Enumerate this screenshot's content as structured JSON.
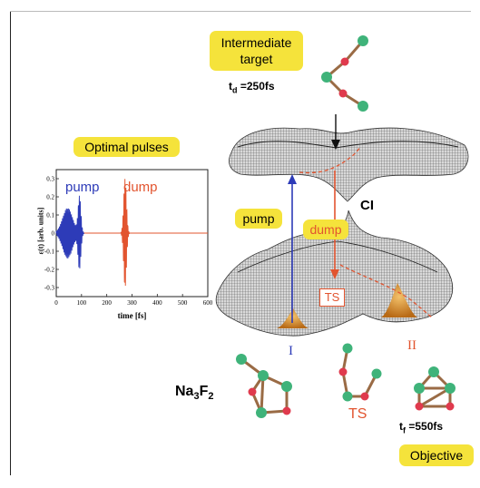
{
  "colors": {
    "highlight": "#f5e33b",
    "pump": "#2d3bb8",
    "dump": "#e2542f",
    "atom_green": "#3fb37a",
    "atom_red": "#e03a4d",
    "bond": "#9a6b45",
    "surface": "#8f8f8f",
    "wavepacket": "#d98a2b"
  },
  "labels": {
    "intermediate_target": "Intermediate target",
    "td": "t",
    "td_sub": "d",
    "td_value": " =250fs",
    "optimal_pulses": "Optimal pulses",
    "pump": "pump",
    "dump": "dump",
    "ci": "CI",
    "ts_box": "TS",
    "ts_bottom": "TS",
    "state_I": "I",
    "state_II": "II",
    "molecule": "Na",
    "molecule_sub1": "3",
    "molecule_F": "F",
    "molecule_sub2": "2",
    "tf": "t",
    "tf_sub": "f",
    "tf_value": " =550fs",
    "objective": "Objective"
  },
  "inset_plot": {
    "ylabel": "ε(t) [arb. units]",
    "xlabel": "time [fs]",
    "legend_pump": "pump",
    "legend_dump": "dump",
    "x_ticks": [
      "0",
      "100",
      "200",
      "300",
      "400",
      "500",
      "600"
    ],
    "y_ticks": [
      "0.3",
      "0.2",
      "0.1",
      "0",
      "-0.1",
      "-0.2",
      "-0.3"
    ]
  },
  "chart_data": {
    "type": "line",
    "xlabel": "time [fs]",
    "ylabel": "ε(t) [arb. units]",
    "xlim": [
      0,
      600
    ],
    "ylim": [
      -0.35,
      0.35
    ],
    "series": [
      {
        "name": "pump",
        "x_range": [
          0,
          110
        ],
        "peak_amplitude": 0.2
      },
      {
        "name": "dump",
        "x_range": [
          255,
          290
        ],
        "peak_amplitude": 0.3
      }
    ]
  }
}
